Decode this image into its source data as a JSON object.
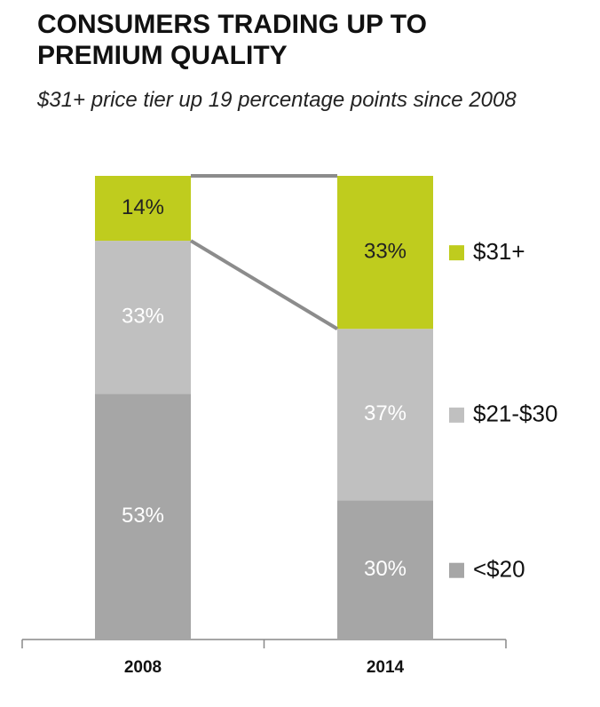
{
  "chart_data": {
    "type": "stacked_bar",
    "title": "CONSUMERS TRADING UP TO PREMIUM QUALITY",
    "subtitle": "$31+ price tier up 19 percentage points since 2008",
    "categories": [
      "2008",
      "2014"
    ],
    "series": [
      {
        "name": "<$20",
        "color": "#a6a6a6",
        "label_color": "#ffffff",
        "values": [
          53,
          30
        ],
        "value_labels": [
          "53%",
          "30%"
        ]
      },
      {
        "name": "$21-$30",
        "color": "#c0c0c0",
        "label_color": "#ffffff",
        "values": [
          33,
          37
        ],
        "value_labels": [
          "33%",
          "37%"
        ]
      },
      {
        "name": "$31+",
        "color": "#bfcc1e",
        "label_color": "#222222",
        "values": [
          14,
          33
        ],
        "value_labels": [
          "14%",
          "33%"
        ]
      }
    ],
    "ylim": [
      0,
      100
    ],
    "legend": "right"
  }
}
